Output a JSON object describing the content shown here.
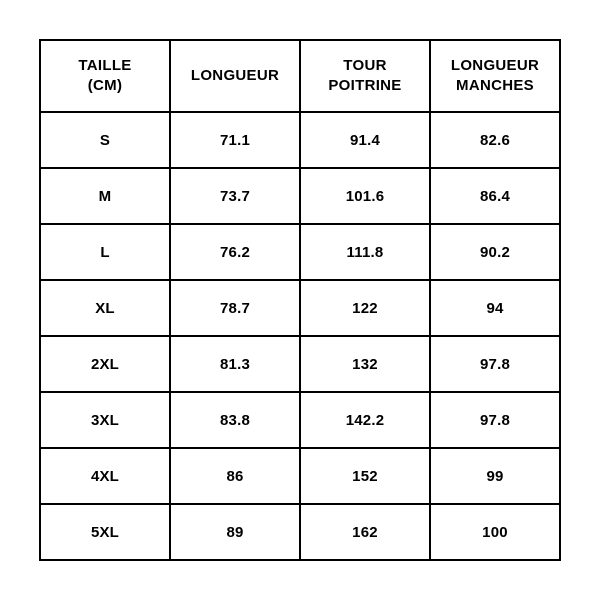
{
  "table": {
    "type": "table",
    "background_color": "#ffffff",
    "border_color": "#000000",
    "border_width": 2,
    "text_color": "#000000",
    "font_family": "Arial, Helvetica, sans-serif",
    "header_fontsize": 15,
    "cell_fontsize": 15,
    "font_weight": 700,
    "columns": [
      {
        "label": "TAILLE\n(CM)",
        "width_pct": 25,
        "align": "center"
      },
      {
        "label": "LONGUEUR",
        "width_pct": 25,
        "align": "center"
      },
      {
        "label": "TOUR\nPOITRINE",
        "width_pct": 25,
        "align": "center"
      },
      {
        "label": "LONGUEUR\nMANCHES",
        "width_pct": 25,
        "align": "center"
      }
    ],
    "rows": [
      [
        "S",
        "71.1",
        "91.4",
        "82.6"
      ],
      [
        "M",
        "73.7",
        "101.6",
        "86.4"
      ],
      [
        "L",
        "76.2",
        "111.8",
        "90.2"
      ],
      [
        "XL",
        "78.7",
        "122",
        "94"
      ],
      [
        "2XL",
        "81.3",
        "132",
        "97.8"
      ],
      [
        "3XL",
        "83.8",
        "142.2",
        "97.8"
      ],
      [
        "4XL",
        "86",
        "152",
        "99"
      ],
      [
        "5XL",
        "89",
        "162",
        "100"
      ]
    ]
  }
}
